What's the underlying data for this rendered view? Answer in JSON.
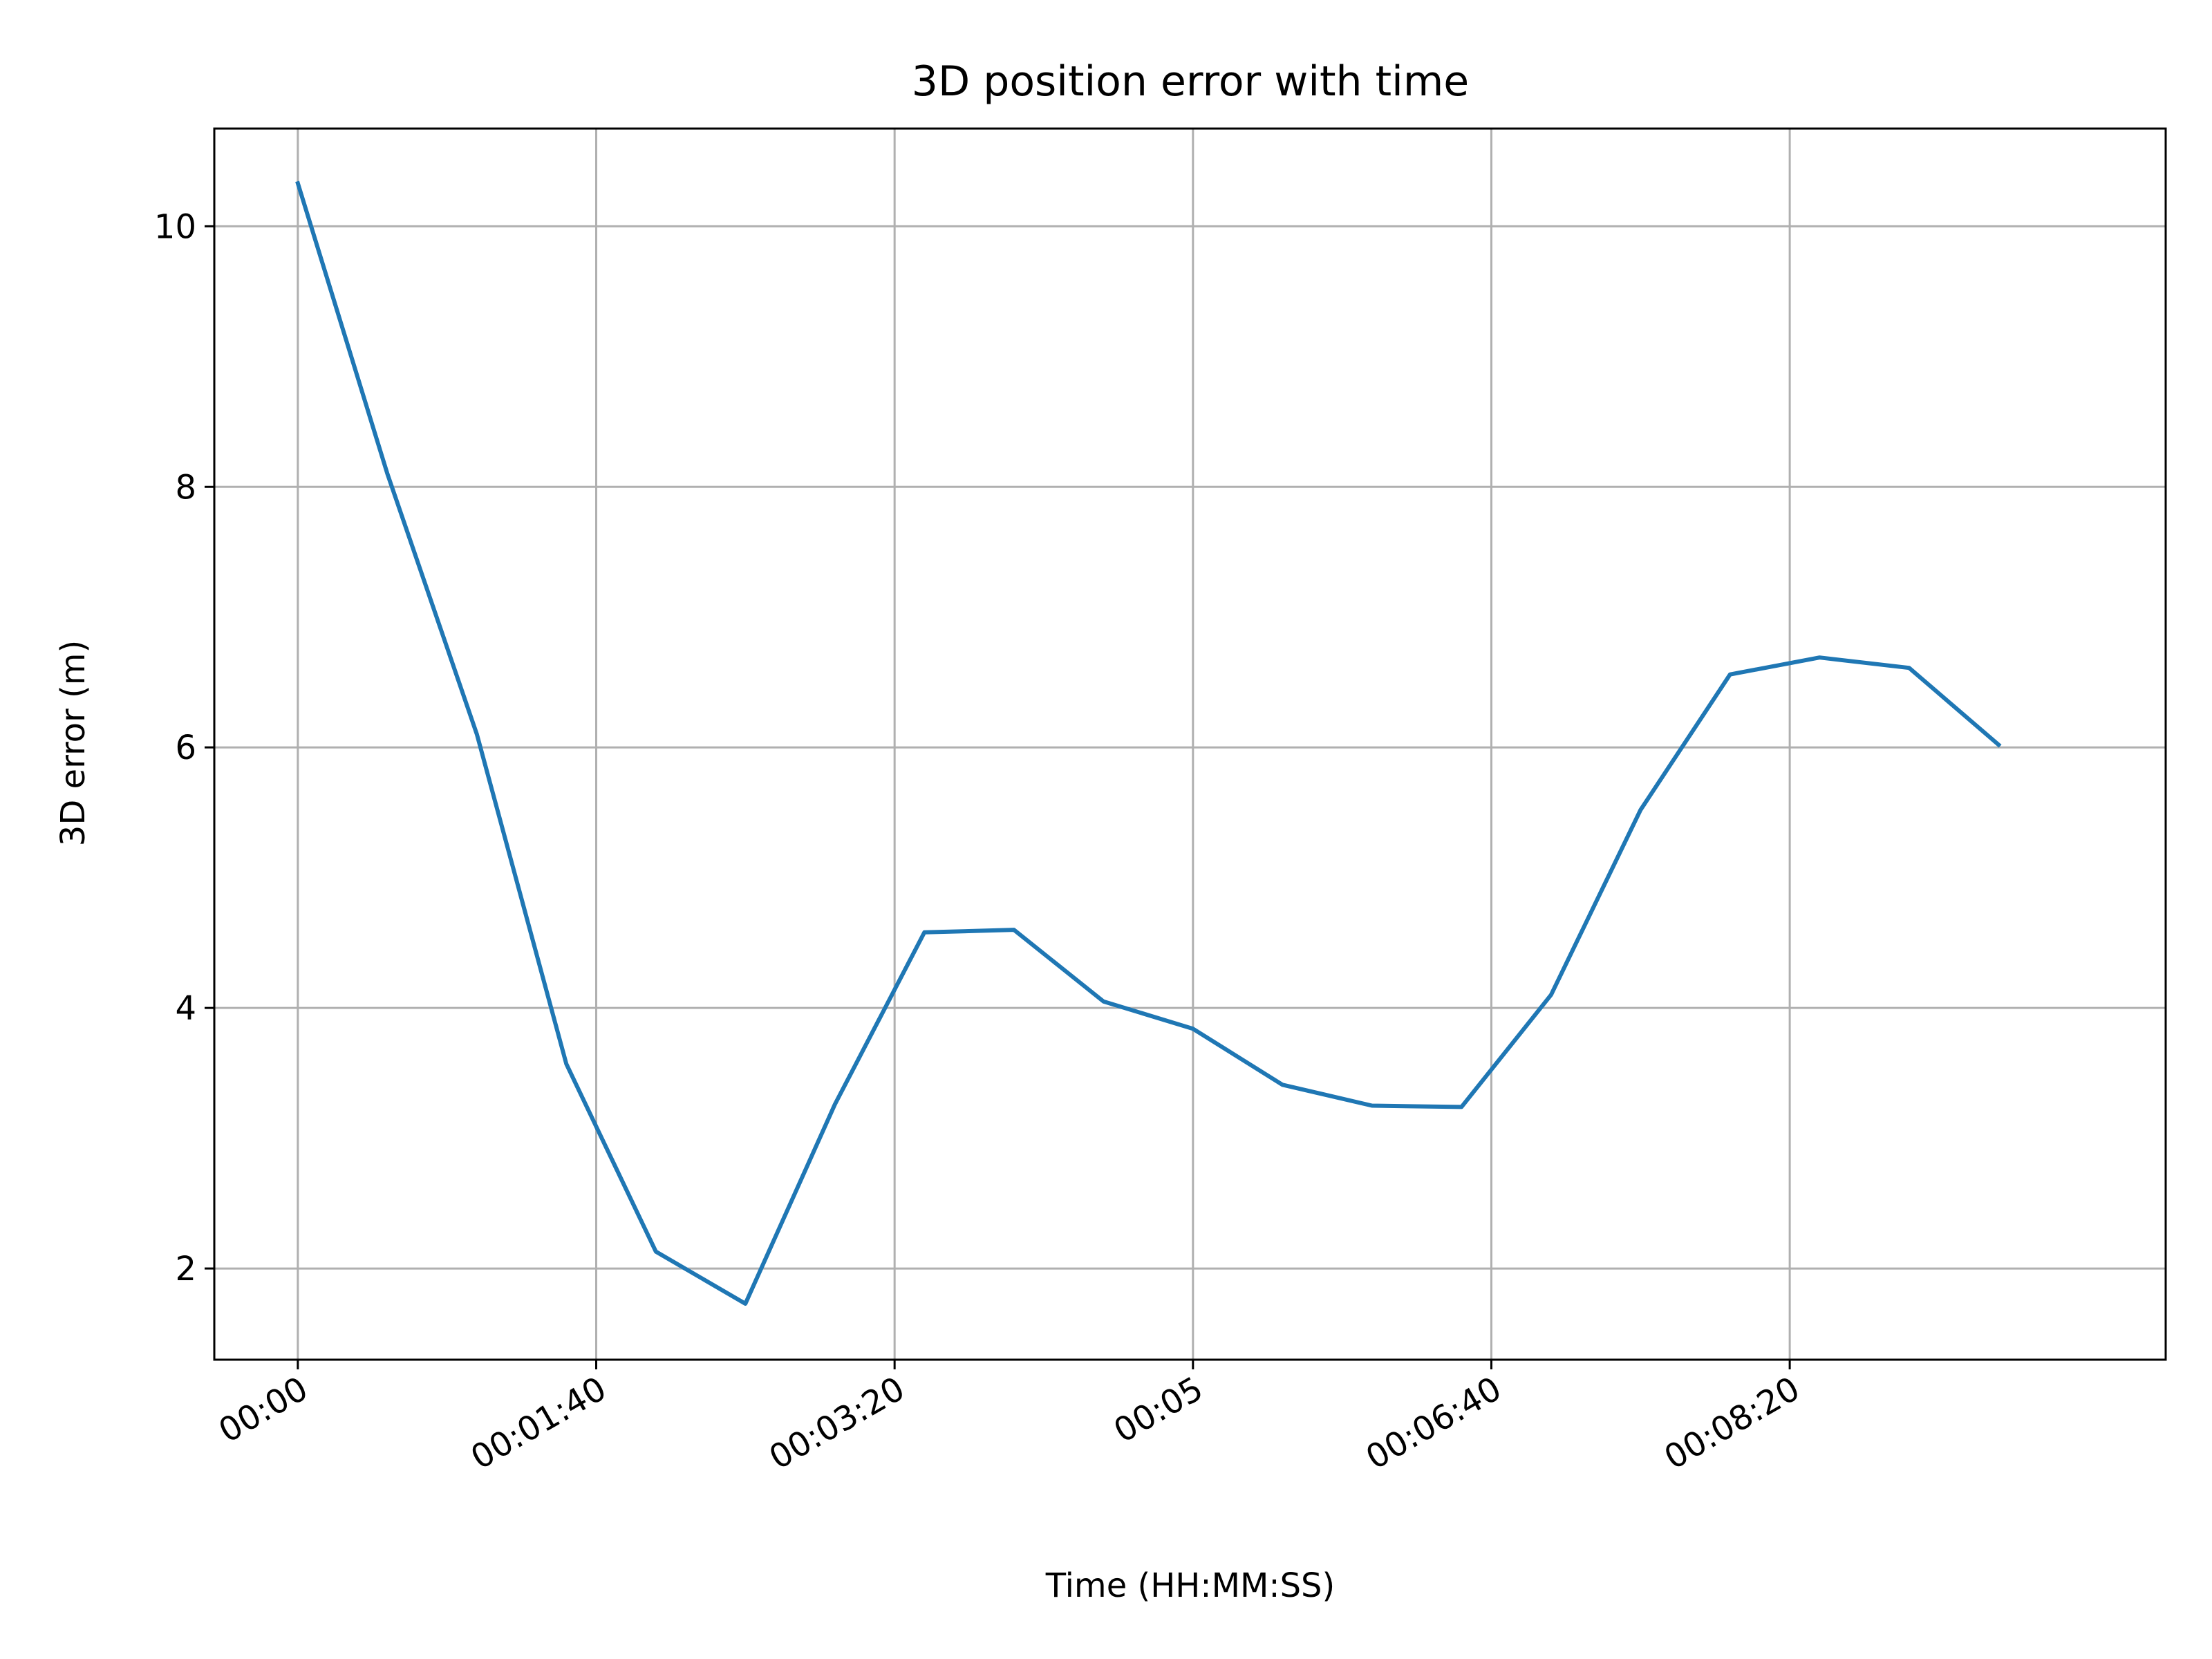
{
  "chart_data": {
    "type": "line",
    "title": "3D position error with time",
    "xlabel": "Time (HH:MM:SS)",
    "ylabel": "3D error (m)",
    "x_tick_labels": [
      "00:00",
      "00:01:40",
      "00:03:20",
      "00:05",
      "00:06:40",
      "00:08:20"
    ],
    "x_tick_values": [
      "00:00:00",
      "00:01:40",
      "00:03:20",
      "00:05:00",
      "00:06:40",
      "00:08:20"
    ],
    "y_ticks": [
      2,
      4,
      6,
      8,
      10
    ],
    "xlim": [
      "-00:00:28",
      "00:10:26"
    ],
    "ylim": [
      1.3,
      10.75
    ],
    "grid": true,
    "series": [
      {
        "color": "#1f77b4",
        "x": [
          "00:00:00",
          "00:00:30",
          "00:01:00",
          "00:01:30",
          "00:02:00",
          "00:02:30",
          "00:03:00",
          "00:03:30",
          "00:04:00",
          "00:04:30",
          "00:05:00",
          "00:05:30",
          "00:06:00",
          "00:06:30",
          "00:07:00",
          "00:07:30",
          "00:08:00",
          "00:08:30",
          "00:09:00",
          "00:09:30"
        ],
        "y": [
          10.33,
          8.1,
          6.1,
          3.57,
          2.13,
          1.73,
          3.26,
          4.58,
          4.6,
          4.05,
          3.84,
          3.41,
          3.25,
          3.24,
          4.1,
          5.52,
          6.56,
          6.69,
          6.61,
          6.02
        ]
      }
    ]
  }
}
